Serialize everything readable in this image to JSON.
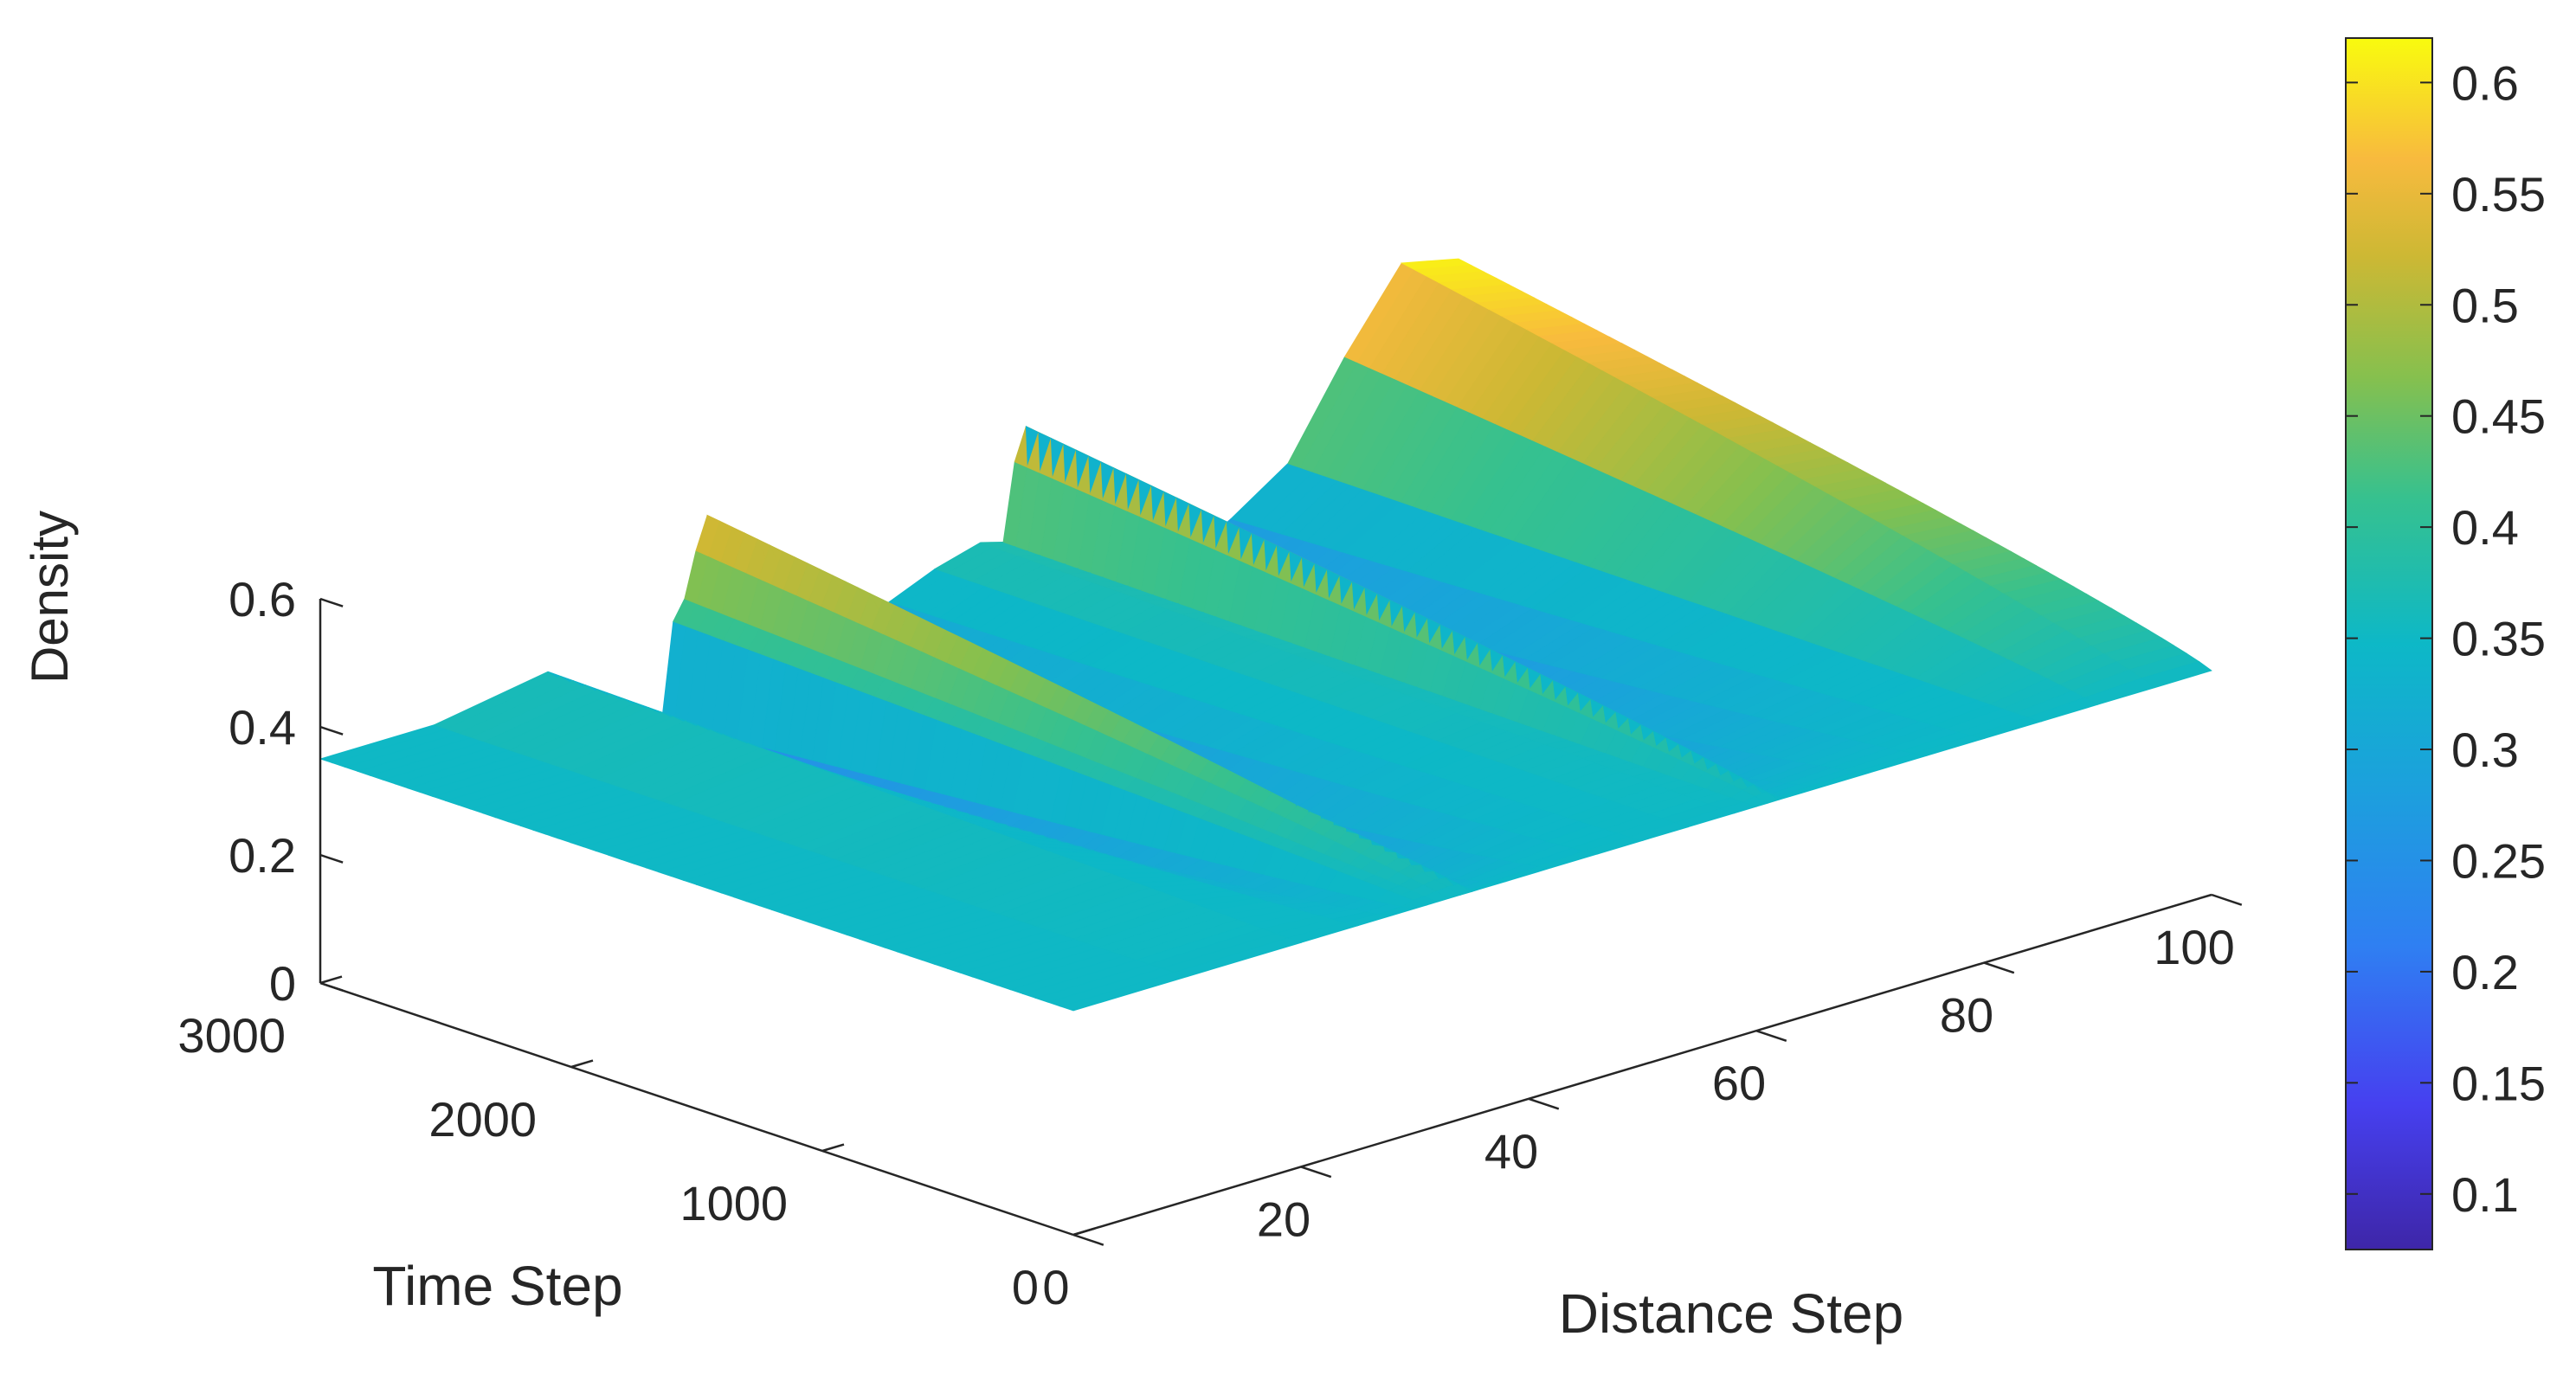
{
  "chart_data": {
    "type": "surface",
    "xlabel": "Distance Step",
    "ylabel": "Time Step",
    "zlabel": "Density",
    "xlim": [
      0,
      100
    ],
    "ylim": [
      0,
      3000
    ],
    "zlim": [
      0,
      0.6
    ],
    "x_ticks": [
      "0",
      "20",
      "40",
      "60",
      "80",
      "100"
    ],
    "y_ticks": [
      "0",
      "1000",
      "2000",
      "3000"
    ],
    "z_ticks": [
      "0",
      "0.2",
      "0.4",
      "0.6"
    ],
    "grid": false,
    "colormap": "parula",
    "colorbar": {
      "range": [
        0.075,
        0.62
      ],
      "ticks": [
        "0.1",
        "0.15",
        "0.2",
        "0.25",
        "0.3",
        "0.35",
        "0.4",
        "0.45",
        "0.5",
        "0.55",
        "0.6"
      ],
      "placement": "right"
    },
    "profiles": {
      "t0": {
        "x": [
          0,
          10,
          20,
          25,
          28,
          30,
          31,
          32,
          33,
          34,
          35,
          36,
          38,
          42,
          46,
          50,
          54,
          58,
          60,
          61,
          62,
          63,
          64,
          66,
          70,
          75,
          80,
          85,
          90,
          95,
          100
        ],
        "density": [
          0.35,
          0.35,
          0.35,
          0.35,
          0.35,
          0.35,
          0.35,
          0.35,
          0.35,
          0.35,
          0.35,
          0.35,
          0.35,
          0.35,
          0.35,
          0.35,
          0.35,
          0.35,
          0.35,
          0.35,
          0.35,
          0.35,
          0.35,
          0.35,
          0.35,
          0.35,
          0.35,
          0.35,
          0.35,
          0.35,
          0.35
        ]
      },
      "t3000": {
        "x": [
          0,
          10,
          20,
          25,
          28,
          30,
          31,
          32,
          33,
          34,
          35,
          36,
          38,
          42,
          46,
          50,
          54,
          58,
          60,
          61,
          62,
          63,
          64,
          66,
          70,
          75,
          80,
          85,
          90,
          95,
          100
        ],
        "density": [
          0.35,
          0.35,
          0.38,
          0.3,
          0.22,
          0.25,
          0.4,
          0.43,
          0.5,
          0.55,
          0.5,
          0.09,
          0.13,
          0.22,
          0.29,
          0.33,
          0.36,
          0.38,
          0.37,
          0.49,
          0.54,
          0.12,
          0.14,
          0.16,
          0.2,
          0.25,
          0.3,
          0.36,
          0.5,
          0.62,
          0.6
        ]
      }
    }
  }
}
